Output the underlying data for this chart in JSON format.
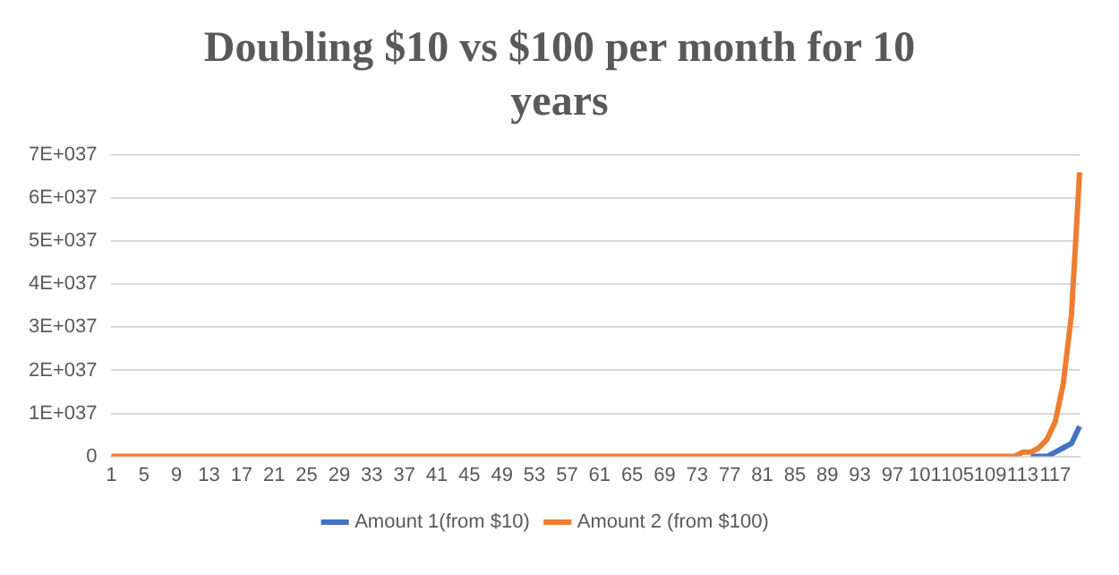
{
  "chart_data": {
    "type": "line",
    "title": "Doubling $10 vs $100 per month for 10 years",
    "categories": [
      "1",
      null,
      null,
      null,
      "5",
      null,
      null,
      null,
      "9",
      null,
      null,
      null,
      "13",
      null,
      null,
      null,
      "17",
      null,
      null,
      null,
      "21",
      null,
      null,
      null,
      "25",
      null,
      null,
      null,
      "29",
      null,
      null,
      null,
      "33",
      null,
      null,
      null,
      "37",
      null,
      null,
      null,
      "41",
      null,
      null,
      null,
      "45",
      null,
      null,
      null,
      "49",
      null,
      null,
      null,
      "53",
      null,
      null,
      null,
      "57",
      null,
      null,
      null,
      "61",
      null,
      null,
      null,
      "65",
      null,
      null,
      null,
      "69",
      null,
      null,
      null,
      "73",
      null,
      null,
      null,
      "77",
      null,
      null,
      null,
      "81",
      null,
      null,
      null,
      "85",
      null,
      null,
      null,
      "89",
      null,
      null,
      null,
      "93",
      null,
      null,
      null,
      "97",
      null,
      null,
      null,
      "101",
      null,
      null,
      null,
      "105",
      null,
      null,
      null,
      "109",
      null,
      null,
      null,
      "113",
      null,
      null,
      null,
      "117",
      null,
      null,
      null
    ],
    "series": [
      {
        "name": "Amount 1(from $10)",
        "color": "#4472c4",
        "values": [
          null,
          null,
          null,
          null,
          null,
          null,
          null,
          null,
          null,
          null,
          null,
          null,
          null,
          null,
          null,
          null,
          null,
          null,
          null,
          null,
          null,
          null,
          null,
          null,
          null,
          null,
          null,
          null,
          null,
          null,
          null,
          null,
          null,
          null,
          null,
          null,
          null,
          null,
          null,
          null,
          null,
          null,
          null,
          null,
          null,
          null,
          null,
          null,
          null,
          null,
          null,
          null,
          null,
          null,
          null,
          null,
          null,
          null,
          null,
          null,
          null,
          null,
          null,
          null,
          null,
          null,
          null,
          null,
          null,
          null,
          null,
          null,
          null,
          null,
          null,
          null,
          null,
          null,
          null,
          null,
          null,
          null,
          null,
          null,
          null,
          null,
          null,
          null,
          null,
          null,
          null,
          null,
          null,
          null,
          null,
          null,
          null,
          null,
          null,
          null,
          null,
          null,
          null,
          null,
          null,
          null,
          null,
          null,
          null,
          null,
          null,
          null,
          null,
          0,
          0,
          0,
          1e+36,
          2e+36,
          3e+36,
          7e+36
        ]
      },
      {
        "name": "Amount 2 (from $100)",
        "color": "#ed7d31",
        "values": [
          0,
          0,
          0,
          0,
          0,
          0,
          0,
          0,
          0,
          0,
          0,
          0,
          0,
          0,
          0,
          0,
          0,
          0,
          0,
          0,
          0,
          0,
          0,
          0,
          0,
          0,
          0,
          0,
          0,
          0,
          0,
          0,
          0,
          0,
          0,
          0,
          0,
          0,
          0,
          0,
          0,
          0,
          0,
          0,
          0,
          0,
          0,
          0,
          0,
          0,
          0,
          0,
          0,
          0,
          0,
          0,
          0,
          0,
          0,
          0,
          0,
          0,
          0,
          0,
          0,
          0,
          0,
          0,
          0,
          0,
          0,
          0,
          0,
          0,
          0,
          0,
          0,
          0,
          0,
          0,
          0,
          0,
          0,
          0,
          0,
          0,
          0,
          0,
          0,
          0,
          0,
          0,
          0,
          0,
          0,
          0,
          0,
          0,
          0,
          0,
          0,
          0,
          0,
          0,
          0,
          0,
          0,
          0,
          0,
          0,
          0,
          0,
          1e+36,
          1e+36,
          2e+36,
          4e+36,
          8e+36,
          1.7e+37,
          3.3e+37,
          6.6e+37
        ]
      }
    ],
    "ylim": [
      0,
      7e+37
    ],
    "yticks": [
      0,
      {
        "value": 1e+37,
        "label": "1E+037"
      },
      {
        "value": 2e+37,
        "label": "2E+037"
      },
      {
        "value": 3e+37,
        "label": "3E+037"
      },
      {
        "value": 4e+37,
        "label": "4E+037"
      },
      {
        "value": 5e+37,
        "label": "5E+037"
      },
      {
        "value": 6e+37,
        "label": "6E+037"
      },
      {
        "value": 7e+37,
        "label": "7E+037"
      }
    ],
    "grid": "y",
    "legend": "bottom",
    "marker": "none",
    "line_style": "solid"
  }
}
